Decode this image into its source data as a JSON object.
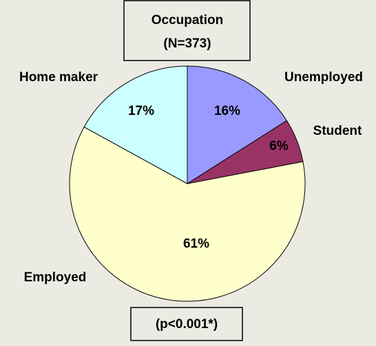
{
  "chart_data": {
    "type": "pie",
    "title": "Occupation",
    "subtitle": "(N=373)",
    "annotation": "(p<0.001*)",
    "categories": [
      "Unemployed",
      "Student",
      "Employed",
      "Home maker"
    ],
    "values": [
      16,
      6,
      61,
      17
    ],
    "value_labels": [
      "16%",
      "6%",
      "61%",
      "17%"
    ],
    "colors": [
      "#9999ff",
      "#993366",
      "#ffffcc",
      "#ccffff"
    ]
  }
}
